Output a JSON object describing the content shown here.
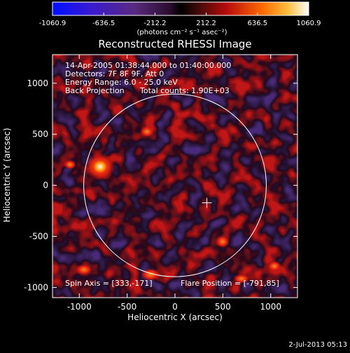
{
  "colorbar": {
    "ticks": [
      "-1060.9",
      "-636.5",
      "-212.2",
      "212.2",
      "636.5",
      "1060.9"
    ],
    "units": "(photons cm⁻² s⁻¹ asec⁻²)"
  },
  "title": "Reconstructed RHESSI Image",
  "annotations": {
    "time": "14-Apr-2005 01:38:44.000 to 01:40:00.000",
    "detectors": "Detectors: 7F 8F 9F, Att 0",
    "energy": "Energy Range: 6.0 - 25.0 keV",
    "method": "Back Projection",
    "counts": "Total counts: 1.90E+03",
    "spin_axis": "Spin Axis = [333,-171]",
    "flare_position": "Flare Position = [-791,85]"
  },
  "axes": {
    "xlabel": "Heliocentric X (arcsec)",
    "ylabel": "Heliocentric Y (arcsec)",
    "xticks": [
      -1000,
      -500,
      0,
      500,
      1000
    ],
    "yticks": [
      -1000,
      -500,
      0,
      500,
      1000
    ],
    "xlim": [
      -1280,
      1280
    ],
    "ylim": [
      -1100,
      1280
    ]
  },
  "markers": {
    "spin_axis_xy": [
      333,
      -171
    ],
    "flare_xy": [
      -791,
      85
    ],
    "solar_radius_arcsec": 954
  },
  "timestamp": "2-Jul-2013 05:13"
}
